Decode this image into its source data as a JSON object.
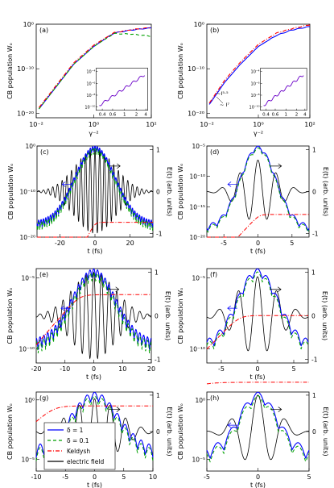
{
  "chart_data": [
    {
      "panel": "(a)",
      "type": "line",
      "xlabel": "γ⁻²",
      "ylabel": "CB population Wₒ",
      "xscale": "log",
      "yscale": "log",
      "xlim": [
        0.01,
        100
      ],
      "ylim": [
        1e-21,
        1
      ],
      "xticks": [
        "10⁻²",
        "10⁰",
        "10²"
      ],
      "yticks": [
        "10⁰",
        "10⁻¹⁰",
        "10⁻²⁰"
      ],
      "series": [
        {
          "name": "δ = 1",
          "color": "#0000ff",
          "dash": "",
          "x": [
            0.0125,
            0.05,
            0.2,
            1,
            5,
            20,
            100
          ],
          "y": [
            1e-19,
            1e-14,
            1e-09,
            1e-05,
            0.01,
            0.05,
            0.15
          ]
        },
        {
          "name": "δ = 0.1",
          "color": "#00a000",
          "dash": "4,3",
          "x": [
            0.0125,
            0.05,
            0.2,
            1,
            5,
            20,
            100
          ],
          "y": [
            1e-19,
            1e-14,
            1e-09,
            1e-05,
            0.008,
            0.006,
            0.002
          ]
        },
        {
          "name": "Keldysh",
          "color": "#ff0000",
          "dash": "5,2,1,2",
          "x": [
            0.0125,
            0.05,
            0.2,
            1,
            5,
            20,
            100
          ],
          "y": [
            2e-19,
            2e-14,
            2e-09,
            2e-05,
            0.012,
            0.06,
            0.18
          ]
        }
      ],
      "inset": {
        "xticks": [
          "0.4",
          "0.6",
          "1",
          "2",
          "4"
        ],
        "yticks": [
          "10⁻⁴",
          "10⁻⁶",
          "10⁻⁸",
          "10⁻¹⁰"
        ]
      }
    },
    {
      "panel": "(b)",
      "type": "line",
      "xlabel": "γ⁻²",
      "ylabel": "CB population Wₒ",
      "xscale": "log",
      "yscale": "log",
      "xlim": [
        0.01,
        100
      ],
      "ylim": [
        1e-21,
        1
      ],
      "xticks": [
        "10⁻²",
        "10⁰",
        "10²"
      ],
      "yticks": [
        "10⁰",
        "10⁻¹⁰",
        "10⁻²⁰"
      ],
      "series": [
        {
          "name": "δ = 1",
          "color": "#0000ff",
          "dash": "",
          "x": [
            0.0125,
            0.05,
            0.2,
            1,
            5,
            20,
            100
          ],
          "y": [
            1e-18,
            1e-13,
            1e-09,
            1e-05,
            0.003,
            0.05,
            0.3
          ]
        },
        {
          "name": "Keldysh",
          "color": "#ff0000",
          "dash": "5,2,1,2",
          "x": [
            0.0125,
            0.05,
            0.2,
            1,
            5,
            20,
            100
          ],
          "y": [
            2e-18,
            3e-13,
            3e-09,
            3e-05,
            0.01,
            0.1,
            0.8
          ]
        }
      ],
      "annotations": [
        "~I⁵·⁵",
        "~ I⁷"
      ],
      "inset": {
        "xticks": [
          "0.4",
          "0.6",
          "1",
          "2",
          "4"
        ],
        "yticks": [
          "10⁻⁴",
          "10⁻⁶",
          "10⁻⁸",
          "10⁻¹⁰"
        ]
      }
    },
    {
      "panel": "(c)",
      "type": "line",
      "xlabel": "t (fs)",
      "ylabel": "CB population Wₒ",
      "y2label": "E(t) (arb. units)",
      "xlim": [
        -33,
        33
      ],
      "xticks": [
        "-20",
        "0",
        "20"
      ],
      "yticks": [
        "10⁰",
        "10⁻¹⁰",
        "10⁻²⁰"
      ],
      "y2ticks": [
        "1",
        "0",
        "-1"
      ],
      "params": {
        "tau": 11.5,
        "period": 2.67,
        "wmax": 1e-08,
        "wmin": 1e-18,
        "kfinal": 1e-17,
        "kt0": 0,
        "kw": 2,
        "fieldAmp": 1
      }
    },
    {
      "panel": "(d)",
      "type": "line",
      "xlabel": "t (fs)",
      "ylabel": "CB population Wₒ",
      "y2label": "E(t) (arb. units)",
      "xlim": [
        -7.5,
        7.5
      ],
      "xticks": [
        "-5",
        "0",
        "5"
      ],
      "yticks": [
        "10⁻⁵",
        "10⁻¹⁰",
        "10⁻¹⁵",
        "10⁻²⁰"
      ],
      "y2ticks": [
        "1",
        "0",
        "-1"
      ],
      "params": {
        "tau": 2.6,
        "period": 2.67,
        "wmax": 1e-05,
        "wmin": 1e-19,
        "kfinal": 1e-16,
        "kt0": 0.2,
        "kw": 0.7,
        "fieldAmp": 0.75
      }
    },
    {
      "panel": "(e)",
      "type": "line",
      "xlabel": "t (fs)",
      "ylabel": "CB population Wₒ",
      "y2label": "E(t) (arb. units)",
      "xlim": [
        -20,
        20
      ],
      "xticks": [
        "-20",
        "-10",
        "0",
        "10",
        "20"
      ],
      "yticks": [
        "10⁻⁵",
        "10⁻¹⁰"
      ],
      "y2ticks": [
        "1",
        "0",
        "-1"
      ],
      "params": {
        "tau": 7.5,
        "period": 2.67,
        "wmax": 0.0003,
        "wmin": 1e-10,
        "kfinal": 1e-05,
        "kt0": -5,
        "kw": 3,
        "fieldAmp": 1
      }
    },
    {
      "panel": "(f)",
      "type": "line",
      "xlabel": "t (fs)",
      "ylabel": "CB population Wₒ",
      "y2label": "E(t) (arb. units)",
      "xlim": [
        -7,
        7
      ],
      "xticks": [
        "-5",
        "0",
        "5"
      ],
      "yticks": [
        "10⁻⁵",
        "10⁻¹⁰"
      ],
      "y2ticks": [
        "1",
        "0",
        "-1"
      ],
      "params": {
        "tau": 2.8,
        "period": 2.67,
        "wmax": 0.003,
        "wmin": 1e-10,
        "kfinal": 5e-07,
        "kt0": -2.5,
        "kw": 1.2,
        "fieldAmp": 0.9
      }
    },
    {
      "panel": "(g)",
      "type": "line",
      "xlabel": "t (fs)",
      "ylabel": "CB population Wₒ",
      "y2label": "E(t) (arb. units)",
      "xlim": [
        -10,
        10
      ],
      "xticks": [
        "-10",
        "-5",
        "0",
        "5",
        "10"
      ],
      "yticks": [
        "10⁰",
        "10⁻⁵"
      ],
      "y2ticks": [
        "1",
        "0"
      ],
      "params": {
        "tau": 4,
        "period": 2.67,
        "wmax": 0.1,
        "wmin": 1e-06,
        "kfinal": 0.04,
        "kt0": -7,
        "kw": 2,
        "fieldAmp": 0.9
      },
      "legend": {
        "position": "bottom-left",
        "entries": [
          {
            "label": "δ = 1",
            "color": "#0000ff",
            "dash": ""
          },
          {
            "label": "δ = 0.1",
            "color": "#00a000",
            "dash": "4,3"
          },
          {
            "label": "Keldysh",
            "color": "#ff0000",
            "dash": "5,2,1,2"
          },
          {
            "label": "electric field",
            "color": "#000000",
            "dash": ""
          }
        ]
      }
    },
    {
      "panel": "(h)",
      "type": "line",
      "xlabel": "t (fs)",
      "ylabel": "CB population Wₒ",
      "y2label": "E(t) (arb. units)",
      "xlim": [
        -5,
        5
      ],
      "xticks": [
        "-5",
        "0",
        "5"
      ],
      "yticks": [
        "10⁰",
        "10⁻⁵"
      ],
      "y2ticks": [
        "1",
        "0"
      ],
      "params": {
        "tau": 1.8,
        "period": 2.67,
        "wmax": 0.01,
        "wmin": 1e-07,
        "kfinal": 0.4,
        "kt0": -6,
        "kw": 2,
        "fieldAmp": 1
      }
    }
  ]
}
